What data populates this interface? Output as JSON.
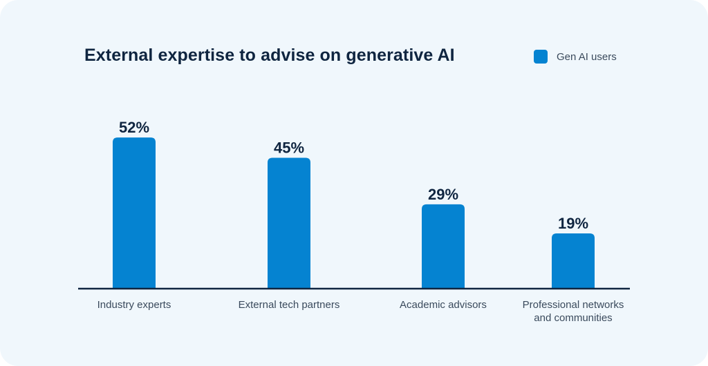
{
  "chart_data": {
    "type": "bar",
    "title": "External expertise to advise on generative AI",
    "categories": [
      [
        "Industry experts"
      ],
      [
        "External tech partners"
      ],
      [
        "Academic advisors"
      ],
      [
        "Professional networks",
        "and communities"
      ]
    ],
    "series": [
      {
        "name": "Gen AI users",
        "values": [
          52,
          45,
          29,
          19
        ]
      }
    ],
    "value_labels": [
      "52%",
      "45%",
      "29%",
      "19%"
    ],
    "ylim": [
      0,
      60
    ],
    "grid": false,
    "legend": "top-right",
    "colors": {
      "bar": "#0583d1",
      "text": "#0f2540",
      "axis": "#0f2540"
    }
  }
}
